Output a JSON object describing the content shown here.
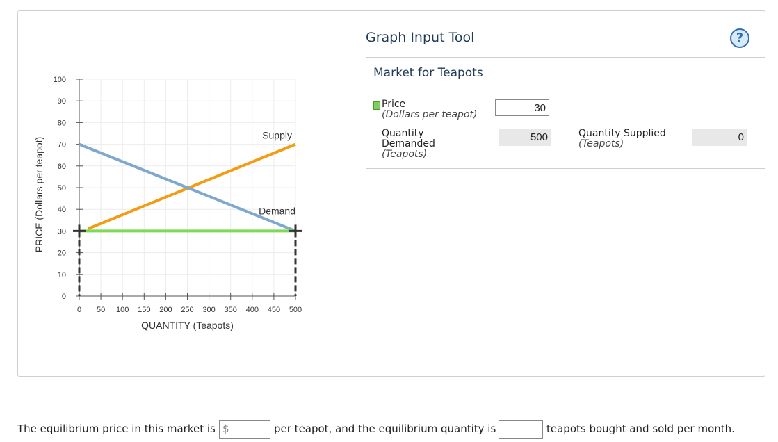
{
  "chart_data": {
    "type": "line",
    "ylabel": "PRICE (Dollars per teapot)",
    "xlabel": "QUANTITY (Teapots)",
    "xlim": [
      0,
      500
    ],
    "ylim": [
      0,
      100
    ],
    "x_ticks": [
      0,
      50,
      100,
      150,
      200,
      250,
      300,
      350,
      400,
      450,
      500
    ],
    "y_ticks": [
      0,
      10,
      20,
      30,
      40,
      50,
      60,
      70,
      80,
      90,
      100
    ],
    "grid": true,
    "series": [
      {
        "name": "Supply",
        "x": [
          20,
          500
        ],
        "y": [
          31,
          70
        ],
        "color": "#f39c12"
      },
      {
        "name": "Demand",
        "x": [
          0,
          500
        ],
        "y": [
          70,
          30
        ],
        "color": "#7fa8cf"
      },
      {
        "name": "Price",
        "x": [
          0,
          500
        ],
        "y": [
          30,
          30
        ],
        "color": "#7ed957"
      }
    ]
  },
  "tool": {
    "title": "Graph Input Tool",
    "help_label": "?",
    "market_title": "Market for Teapots",
    "price_label": "Price",
    "price_unit": "(Dollars per teapot)",
    "price_value": "30",
    "qd_label_1": "Quantity",
    "qd_label_2": "Demanded",
    "qd_unit": "(Teapots)",
    "qd_value": "500",
    "qs_label": "Quantity Supplied",
    "qs_unit": "(Teapots)",
    "qs_value": "0"
  },
  "question": {
    "part1": "The equilibrium price in this market is",
    "currency": "$",
    "part2": "per teapot, and the equilibrium quantity is",
    "part3": "teapots bought and sold per month."
  },
  "colors": {
    "supply": "#f39c12",
    "demand": "#7fa8cf",
    "price_line": "#7ed957",
    "accent": "#2f6fb3"
  }
}
